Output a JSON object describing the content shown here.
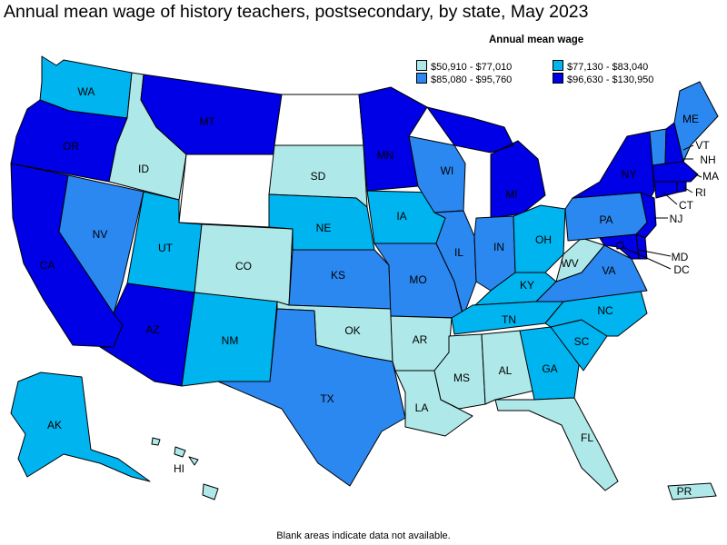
{
  "title": "Annual mean wage of history teachers, postsecondary, by state, May 2023",
  "legend": {
    "title": "Annual mean wage",
    "items": [
      {
        "label": "$50,910 - $77,010",
        "color": "#aee8e8"
      },
      {
        "label": "$77,130 - $83,040",
        "color": "#00b4f0"
      },
      {
        "label": "$85,080 - $95,760",
        "color": "#2b88f0"
      },
      {
        "label": "$96,630 - $130,950",
        "color": "#0000e6"
      }
    ]
  },
  "footnote": "Blank areas indicate data not available.",
  "colors": {
    "tier1": "#aee8e8",
    "tier2": "#00b4f0",
    "tier3": "#2b88f0",
    "tier4": "#0000e6",
    "nodata": "#ffffff",
    "border": "#000000"
  },
  "states": {
    "WA": {
      "label": "WA",
      "tier": 2
    },
    "OR": {
      "label": "OR",
      "tier": 4
    },
    "CA": {
      "label": "CA",
      "tier": 4
    },
    "ID": {
      "label": "ID",
      "tier": 1
    },
    "NV": {
      "label": "NV",
      "tier": 3
    },
    "MT": {
      "label": "MT",
      "tier": 4
    },
    "WY": {
      "label": "",
      "tier": 0
    },
    "UT": {
      "label": "UT",
      "tier": 2
    },
    "AZ": {
      "label": "AZ",
      "tier": 4
    },
    "CO": {
      "label": "CO",
      "tier": 1
    },
    "NM": {
      "label": "NM",
      "tier": 2
    },
    "ND": {
      "label": "",
      "tier": 0
    },
    "SD": {
      "label": "SD",
      "tier": 1
    },
    "NE": {
      "label": "NE",
      "tier": 2
    },
    "KS": {
      "label": "KS",
      "tier": 3
    },
    "OK": {
      "label": "OK",
      "tier": 1
    },
    "TX": {
      "label": "TX",
      "tier": 3
    },
    "MN": {
      "label": "MN",
      "tier": 4
    },
    "IA": {
      "label": "IA",
      "tier": 2
    },
    "MO": {
      "label": "MO",
      "tier": 3
    },
    "AR": {
      "label": "AR",
      "tier": 1
    },
    "LA": {
      "label": "LA",
      "tier": 1
    },
    "WI": {
      "label": "WI",
      "tier": 3
    },
    "IL": {
      "label": "IL",
      "tier": 3
    },
    "MI": {
      "label": "MI",
      "tier": 4
    },
    "IN": {
      "label": "IN",
      "tier": 3
    },
    "OH": {
      "label": "OH",
      "tier": 2
    },
    "KY": {
      "label": "KY",
      "tier": 2
    },
    "TN": {
      "label": "TN",
      "tier": 2
    },
    "MS": {
      "label": "MS",
      "tier": 1
    },
    "AL": {
      "label": "AL",
      "tier": 1
    },
    "GA": {
      "label": "GA",
      "tier": 2
    },
    "FL": {
      "label": "FL",
      "tier": 1
    },
    "SC": {
      "label": "SC",
      "tier": 2
    },
    "NC": {
      "label": "NC",
      "tier": 2
    },
    "VA": {
      "label": "VA",
      "tier": 3
    },
    "WV": {
      "label": "WV",
      "tier": 1
    },
    "PA": {
      "label": "PA",
      "tier": 3
    },
    "NY": {
      "label": "NY",
      "tier": 4
    },
    "VT": {
      "label": "VT",
      "tier": 3
    },
    "NH": {
      "label": "NH",
      "tier": 4
    },
    "ME": {
      "label": "ME",
      "tier": 3
    },
    "MA": {
      "label": "MA",
      "tier": 4
    },
    "RI": {
      "label": "RI",
      "tier": 4
    },
    "CT": {
      "label": "CT",
      "tier": 4
    },
    "NJ": {
      "label": "NJ",
      "tier": 4
    },
    "DE": {
      "label": "",
      "tier": 4
    },
    "MD": {
      "label": "MD",
      "tier": 4
    },
    "DC": {
      "label": "DC",
      "tier": 4
    },
    "AK": {
      "label": "AK",
      "tier": 2
    },
    "HI": {
      "label": "HI",
      "tier": 1
    },
    "PR": {
      "label": "PR",
      "tier": 1
    }
  }
}
